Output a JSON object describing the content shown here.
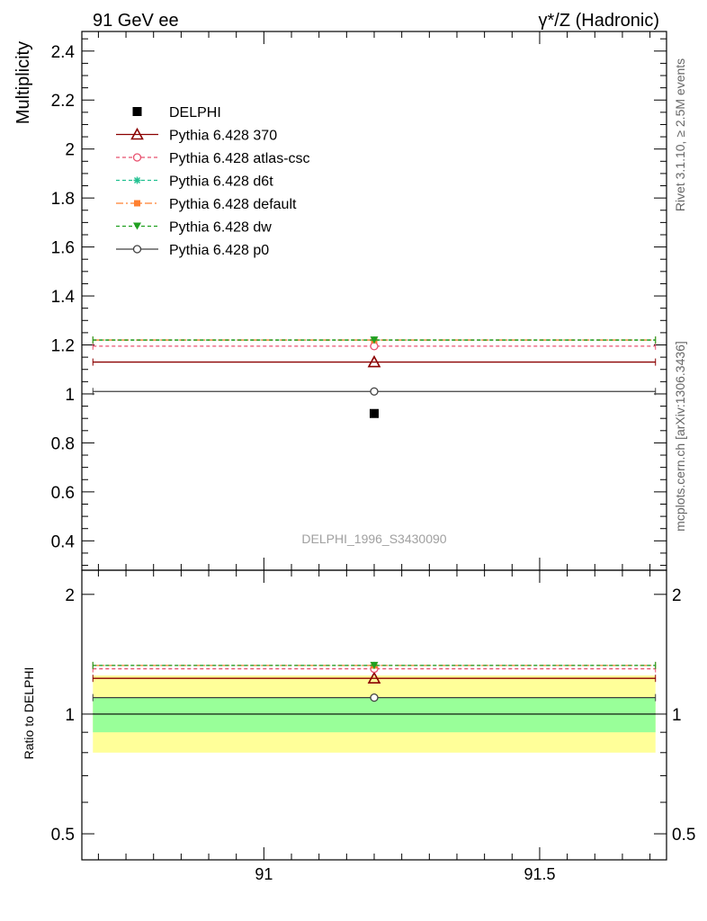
{
  "header": {
    "left": "91 GeV ee",
    "right": "γ*/Z (Hadronic)"
  },
  "side_labels": {
    "rivet": "Rivet 3.1.10, ≥ 2.5M events",
    "mcplots": "mcplots.cern.ch [arXiv:1306.3436]"
  },
  "analysis_id": "DELPHI_1996_S3430090",
  "colors": {
    "data": "#000000",
    "band_inner": "#99ff99",
    "band_outer": "#ffff99"
  },
  "chart_data": [
    {
      "type": "scatter",
      "panel": "main",
      "ylabel": "Multiplicity",
      "xlim": [
        90.67,
        91.73
      ],
      "ylim": [
        0.28,
        2.48
      ],
      "yticks": [
        0.4,
        0.6,
        0.8,
        1,
        1.2,
        1.4,
        1.6,
        1.8,
        2,
        2.2,
        2.4
      ],
      "ytick_labels": [
        "0.4",
        "0.6",
        "0.8",
        "1",
        "1.2",
        "1.4",
        "1.6",
        "1.8",
        "2",
        "2.2",
        "2.4"
      ],
      "x_bin": [
        90.69,
        91.71
      ],
      "x_center": 91.2,
      "data": {
        "name": "DELPHI",
        "x": 91.2,
        "y": 0.92
      },
      "series": [
        {
          "name": "Pythia 6.428 370",
          "y": 1.13,
          "color": "#8b0000",
          "dash": "",
          "marker": "triangle-open"
        },
        {
          "name": "Pythia 6.428 atlas-csc",
          "y": 1.195,
          "color": "#e8506e",
          "dash": "4,3",
          "marker": "circle-open"
        },
        {
          "name": "Pythia 6.428 d6t",
          "y": 1.22,
          "color": "#20c090",
          "dash": "4,3",
          "marker": "star"
        },
        {
          "name": "Pythia 6.428 default",
          "y": 1.22,
          "color": "#ff8030",
          "dash": "8,3,2,3",
          "marker": "square"
        },
        {
          "name": "Pythia 6.428 dw",
          "y": 1.22,
          "color": "#20a020",
          "dash": "4,3",
          "marker": "triangle-down"
        },
        {
          "name": "Pythia 6.428 p0",
          "y": 1.01,
          "color": "#404040",
          "dash": "",
          "marker": "circle-open"
        }
      ],
      "legend_position": "top-left"
    },
    {
      "type": "scatter",
      "panel": "ratio",
      "ylabel": "Ratio to DELPHI",
      "xlim": [
        90.67,
        91.73
      ],
      "ylim": [
        0.43,
        2.3
      ],
      "log_scale_y": true,
      "yticks": [
        0.5,
        1,
        2
      ],
      "ytick_labels": [
        "0.5",
        "1",
        "2"
      ],
      "xticks": [
        91,
        91.5
      ],
      "xtick_labels": [
        "91",
        "91.5"
      ],
      "band_inner": [
        0.9,
        1.1
      ],
      "band_outer": [
        0.8,
        1.25
      ],
      "series": [
        {
          "name": "Pythia 6.428 370",
          "y": 1.23
        },
        {
          "name": "Pythia 6.428 atlas-csc",
          "y": 1.3
        },
        {
          "name": "Pythia 6.428 d6t",
          "y": 1.325
        },
        {
          "name": "Pythia 6.428 default",
          "y": 1.325
        },
        {
          "name": "Pythia 6.428 dw",
          "y": 1.325
        },
        {
          "name": "Pythia 6.428 p0",
          "y": 1.1
        }
      ]
    }
  ]
}
